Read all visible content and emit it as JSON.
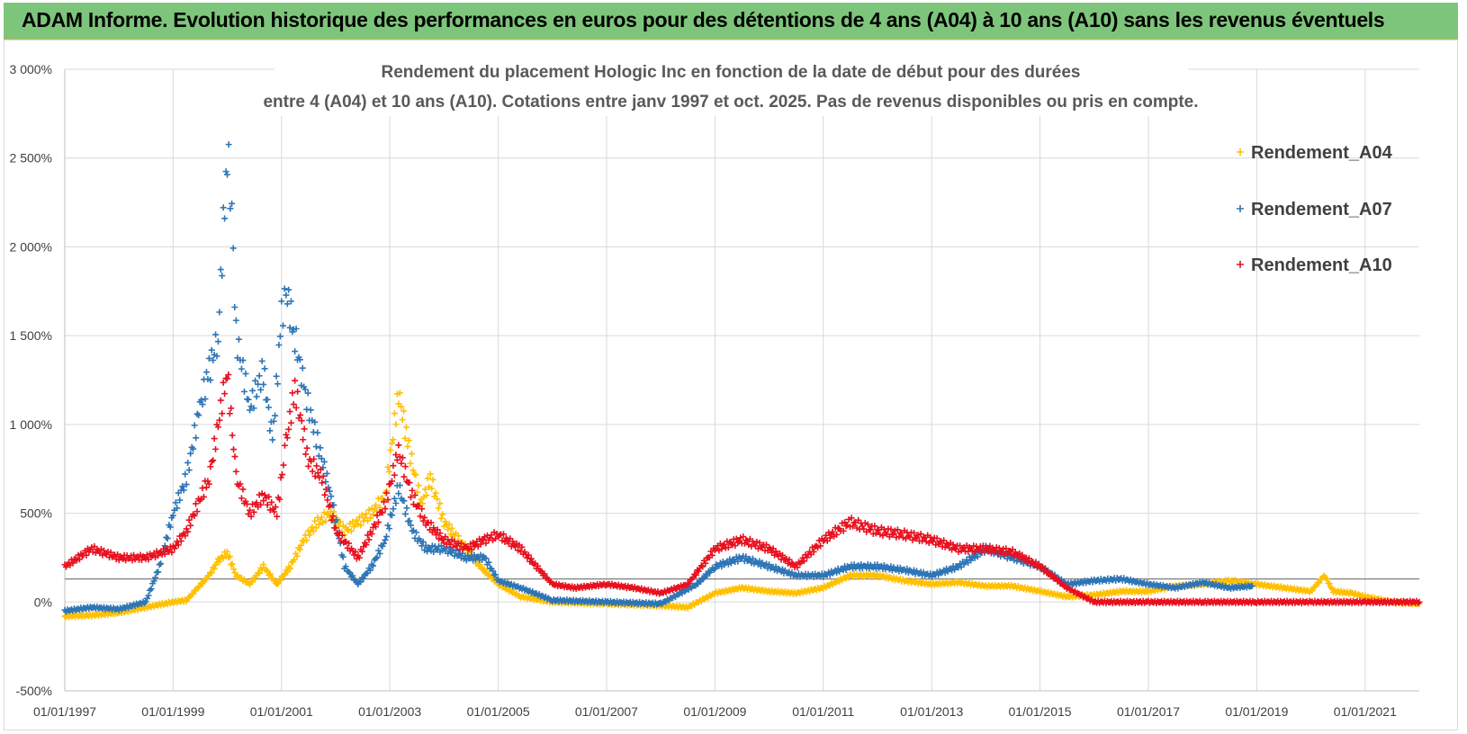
{
  "banner": {
    "title": "ADAM Informe. Evolution historique des performances en euros pour des détentions de 4 ans (A04) à 10 ans (A10) sans les revenus éventuels"
  },
  "colors": {
    "banner_bg": "#7dc57a",
    "a04": "#ffc000",
    "a07": "#2e75b6",
    "a10": "#e8101f"
  },
  "chart_data": {
    "type": "scatter",
    "title_line1": "Rendement du placement Hologic Inc en fonction de la date de début pour des durées",
    "title_line2": "entre 4 (A04) et 10 ans (A10). Cotations entre janv 1997 et oct. 2025. Pas de revenus disponibles ou pris en compte.",
    "xlabel": "",
    "ylabel": "",
    "x_range": [
      "1997-01-01",
      "2022-01-01"
    ],
    "ylim": [
      -500,
      3000
    ],
    "y_ticks": [
      -500,
      0,
      500,
      1000,
      1500,
      2000,
      2500,
      3000
    ],
    "y_tick_labels": [
      "-500%",
      "0%",
      "500%",
      "1 000%",
      "1 500%",
      "2 000%",
      "2 500%",
      "3 000%"
    ],
    "x_tick_labels": [
      "01/01/1997",
      "01/01/1999",
      "01/01/2001",
      "01/01/2003",
      "01/01/2005",
      "01/01/2007",
      "01/01/2009",
      "01/01/2011",
      "01/01/2013",
      "01/01/2015",
      "01/01/2017",
      "01/01/2019",
      "01/01/2021"
    ],
    "grid": true,
    "legend_position": "top-right",
    "marker": "+",
    "series": [
      {
        "name": "Rendement_A04",
        "color": "#ffc000",
        "points": [
          [
            "1997-01-01",
            -80
          ],
          [
            "1997-07-01",
            -75
          ],
          [
            "1998-01-01",
            -60
          ],
          [
            "1998-07-01",
            -30
          ],
          [
            "1999-01-01",
            0
          ],
          [
            "1999-04-01",
            10
          ],
          [
            "1999-09-01",
            150
          ],
          [
            "1999-11-01",
            230
          ],
          [
            "2000-01-01",
            280
          ],
          [
            "2000-03-01",
            150
          ],
          [
            "2000-06-01",
            100
          ],
          [
            "2000-09-01",
            200
          ],
          [
            "2000-12-01",
            100
          ],
          [
            "2001-03-01",
            200
          ],
          [
            "2001-06-01",
            350
          ],
          [
            "2001-09-01",
            450
          ],
          [
            "2001-12-01",
            500
          ],
          [
            "2002-03-01",
            400
          ],
          [
            "2002-06-01",
            450
          ],
          [
            "2002-09-01",
            500
          ],
          [
            "2002-12-01",
            600
          ],
          [
            "2003-03-01",
            1180
          ],
          [
            "2003-05-01",
            900
          ],
          [
            "2003-08-01",
            550
          ],
          [
            "2003-10-01",
            700
          ],
          [
            "2004-01-01",
            450
          ],
          [
            "2004-06-01",
            300
          ],
          [
            "2004-09-01",
            200
          ],
          [
            "2005-01-01",
            100
          ],
          [
            "2005-06-01",
            30
          ],
          [
            "2006-01-01",
            0
          ],
          [
            "2007-01-01",
            -10
          ],
          [
            "2008-01-01",
            -20
          ],
          [
            "2008-07-01",
            -30
          ],
          [
            "2009-01-01",
            50
          ],
          [
            "2009-07-01",
            80
          ],
          [
            "2010-01-01",
            60
          ],
          [
            "2010-07-01",
            50
          ],
          [
            "2011-01-01",
            80
          ],
          [
            "2011-07-01",
            150
          ],
          [
            "2012-01-01",
            150
          ],
          [
            "2012-07-01",
            120
          ],
          [
            "2013-01-01",
            100
          ],
          [
            "2013-07-01",
            110
          ],
          [
            "2014-01-01",
            90
          ],
          [
            "2014-07-01",
            90
          ],
          [
            "2015-01-01",
            60
          ],
          [
            "2015-07-01",
            30
          ],
          [
            "2016-01-01",
            40
          ],
          [
            "2016-07-01",
            60
          ],
          [
            "2017-01-01",
            60
          ],
          [
            "2017-07-01",
            90
          ],
          [
            "2018-01-01",
            100
          ],
          [
            "2018-07-01",
            120
          ],
          [
            "2019-01-01",
            100
          ],
          [
            "2019-07-01",
            80
          ],
          [
            "2020-01-01",
            60
          ],
          [
            "2020-04-01",
            150
          ],
          [
            "2020-06-01",
            60
          ],
          [
            "2020-10-01",
            50
          ],
          [
            "2021-01-01",
            30
          ],
          [
            "2021-07-01",
            0
          ],
          [
            "2022-01-01",
            -10
          ]
        ]
      },
      {
        "name": "Rendement_A07",
        "color": "#2e75b6",
        "points": [
          [
            "1997-01-01",
            -50
          ],
          [
            "1997-07-01",
            -30
          ],
          [
            "1998-01-01",
            -40
          ],
          [
            "1998-07-01",
            0
          ],
          [
            "1998-10-01",
            200
          ],
          [
            "1999-01-01",
            500
          ],
          [
            "1999-04-01",
            700
          ],
          [
            "1999-07-01",
            1100
          ],
          [
            "1999-09-01",
            1300
          ],
          [
            "1999-11-01",
            1500
          ],
          [
            "2000-01-01",
            2550
          ],
          [
            "2000-02-01",
            2200
          ],
          [
            "2000-03-01",
            1500
          ],
          [
            "2000-06-01",
            1100
          ],
          [
            "2000-09-01",
            1300
          ],
          [
            "2000-11-01",
            900
          ],
          [
            "2001-01-01",
            1600
          ],
          [
            "2001-02-01",
            1750
          ],
          [
            "2001-04-01",
            1500
          ],
          [
            "2001-06-01",
            1200
          ],
          [
            "2001-09-01",
            900
          ],
          [
            "2001-12-01",
            600
          ],
          [
            "2002-03-01",
            200
          ],
          [
            "2002-06-01",
            100
          ],
          [
            "2002-09-01",
            200
          ],
          [
            "2002-12-01",
            350
          ],
          [
            "2003-03-01",
            650
          ],
          [
            "2003-06-01",
            400
          ],
          [
            "2003-09-01",
            300
          ],
          [
            "2004-01-01",
            300
          ],
          [
            "2004-06-01",
            250
          ],
          [
            "2004-10-01",
            250
          ],
          [
            "2005-01-01",
            120
          ],
          [
            "2005-06-01",
            80
          ],
          [
            "2006-01-01",
            10
          ],
          [
            "2007-01-01",
            0
          ],
          [
            "2008-01-01",
            -10
          ],
          [
            "2008-09-01",
            100
          ],
          [
            "2009-01-01",
            200
          ],
          [
            "2009-07-01",
            250
          ],
          [
            "2010-01-01",
            200
          ],
          [
            "2010-07-01",
            150
          ],
          [
            "2011-01-01",
            150
          ],
          [
            "2011-07-01",
            200
          ],
          [
            "2012-01-01",
            200
          ],
          [
            "2012-07-01",
            180
          ],
          [
            "2013-01-01",
            150
          ],
          [
            "2013-07-01",
            200
          ],
          [
            "2014-01-01",
            300
          ],
          [
            "2014-07-01",
            250
          ],
          [
            "2015-01-01",
            200
          ],
          [
            "2015-07-01",
            100
          ],
          [
            "2016-01-01",
            120
          ],
          [
            "2016-07-01",
            130
          ],
          [
            "2017-01-01",
            100
          ],
          [
            "2017-07-01",
            80
          ],
          [
            "2018-01-01",
            110
          ],
          [
            "2018-07-01",
            80
          ],
          [
            "2018-12-01",
            90
          ]
        ]
      },
      {
        "name": "Rendement_A10",
        "color": "#e8101f",
        "points": [
          [
            "1997-01-01",
            200
          ],
          [
            "1997-07-01",
            300
          ],
          [
            "1998-01-01",
            250
          ],
          [
            "1998-07-01",
            250
          ],
          [
            "1999-01-01",
            300
          ],
          [
            "1999-04-01",
            400
          ],
          [
            "1999-09-01",
            700
          ],
          [
            "2000-01-01",
            1300
          ],
          [
            "2000-03-01",
            700
          ],
          [
            "2000-06-01",
            500
          ],
          [
            "2000-09-01",
            600
          ],
          [
            "2000-12-01",
            500
          ],
          [
            "2001-02-01",
            900
          ],
          [
            "2001-04-01",
            1200
          ],
          [
            "2001-07-01",
            800
          ],
          [
            "2001-10-01",
            700
          ],
          [
            "2002-01-01",
            400
          ],
          [
            "2002-06-01",
            250
          ],
          [
            "2002-09-01",
            400
          ],
          [
            "2002-12-01",
            550
          ],
          [
            "2003-03-01",
            850
          ],
          [
            "2003-06-01",
            600
          ],
          [
            "2003-09-01",
            450
          ],
          [
            "2004-01-01",
            350
          ],
          [
            "2004-06-01",
            300
          ],
          [
            "2004-10-01",
            350
          ],
          [
            "2005-01-01",
            380
          ],
          [
            "2005-06-01",
            300
          ],
          [
            "2006-01-01",
            100
          ],
          [
            "2006-06-01",
            80
          ],
          [
            "2007-01-01",
            100
          ],
          [
            "2007-07-01",
            80
          ],
          [
            "2008-01-01",
            50
          ],
          [
            "2008-07-01",
            100
          ],
          [
            "2009-01-01",
            300
          ],
          [
            "2009-07-01",
            350
          ],
          [
            "2010-01-01",
            300
          ],
          [
            "2010-07-01",
            200
          ],
          [
            "2011-01-01",
            350
          ],
          [
            "2011-07-01",
            450
          ],
          [
            "2012-01-01",
            400
          ],
          [
            "2012-07-01",
            380
          ],
          [
            "2013-01-01",
            350
          ],
          [
            "2013-07-01",
            300
          ],
          [
            "2014-01-01",
            300
          ],
          [
            "2014-07-01",
            280
          ],
          [
            "2015-01-01",
            200
          ],
          [
            "2015-07-01",
            80
          ],
          [
            "2016-01-01",
            0
          ],
          [
            "2017-01-01",
            0
          ],
          [
            "2018-01-01",
            0
          ],
          [
            "2019-01-01",
            0
          ],
          [
            "2020-01-01",
            0
          ],
          [
            "2021-01-01",
            0
          ],
          [
            "2022-01-01",
            0
          ]
        ]
      }
    ]
  }
}
